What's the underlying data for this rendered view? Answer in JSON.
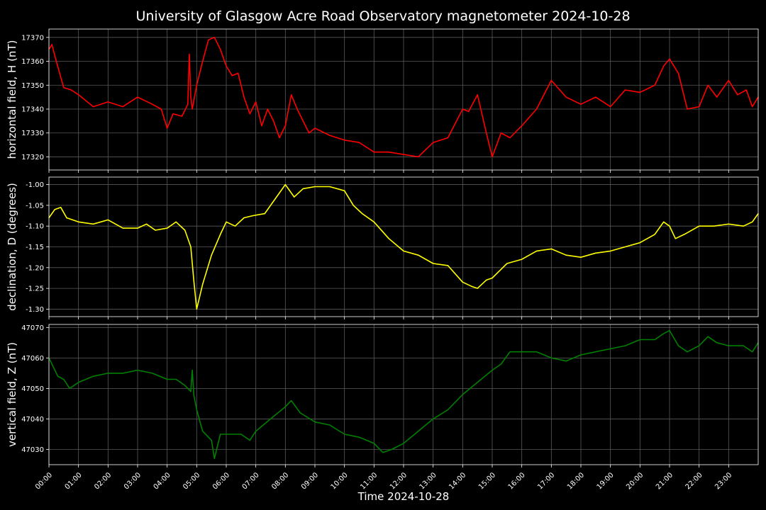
{
  "title": "University of Glasgow Acre Road Observatory magnetometer 2024-10-28",
  "xlabel": "Time 2024-10-28",
  "x_tick_labels": [
    "00:00",
    "01:00",
    "02:00",
    "03:00",
    "04:00",
    "05:00",
    "06:00",
    "07:00",
    "08:00",
    "09:00",
    "10:00",
    "11:00",
    "12:00",
    "13:00",
    "14:00",
    "15:00",
    "16:00",
    "17:00",
    "18:00",
    "19:00",
    "20:00",
    "21:00",
    "22:00",
    "23:00"
  ],
  "chart_data": [
    {
      "type": "line",
      "ylabel": "horizontal field, H (nT)",
      "color": "#ff0000",
      "x_unit": "hours",
      "xlim": [
        0,
        24
      ],
      "ylim": [
        17314.5,
        17373.5
      ],
      "yticks": [
        17320,
        17330,
        17340,
        17350,
        17360,
        17370
      ],
      "ytick_labels": [
        "17320",
        "17330",
        "17340",
        "17350",
        "17360",
        "17370"
      ],
      "grid": true,
      "x": [
        0,
        0.1,
        0.25,
        0.5,
        0.75,
        1,
        1.5,
        2,
        2.5,
        3,
        3.5,
        3.8,
        4,
        4.2,
        4.5,
        4.7,
        4.75,
        4.8,
        4.85,
        5,
        5.2,
        5.4,
        5.6,
        5.8,
        6,
        6.2,
        6.4,
        6.6,
        6.8,
        7,
        7.2,
        7.4,
        7.6,
        7.8,
        8,
        8.2,
        8.4,
        8.6,
        8.8,
        9,
        9.5,
        10,
        10.5,
        11,
        11.5,
        12,
        12.5,
        13,
        13.5,
        14,
        14.2,
        14.5,
        14.8,
        15,
        15.3,
        15.6,
        16,
        16.5,
        17,
        17.5,
        18,
        18.5,
        19,
        19.5,
        20,
        20.5,
        20.8,
        21,
        21.3,
        21.6,
        22,
        22.3,
        22.6,
        23,
        23.3,
        23.6,
        23.8,
        24
      ],
      "y": [
        17365,
        17367,
        17360,
        17349,
        17348,
        17346,
        17341,
        17343,
        17341,
        17345,
        17342,
        17340,
        17332,
        17338,
        17337,
        17342,
        17363,
        17345,
        17340,
        17350,
        17360,
        17369,
        17370,
        17365,
        17358,
        17354,
        17355,
        17345,
        17338,
        17343,
        17333,
        17340,
        17335,
        17328,
        17333,
        17346,
        17340,
        17335,
        17330,
        17332,
        17329,
        17327,
        17326,
        17322,
        17322,
        17321,
        17320,
        17326,
        17328,
        17340,
        17339,
        17346,
        17330,
        17320,
        17330,
        17328,
        17333,
        17340,
        17352,
        17345,
        17342,
        17345,
        17341,
        17348,
        17347,
        17350,
        17358,
        17361,
        17355,
        17340,
        17341,
        17350,
        17345,
        17352,
        17346,
        17348,
        17341,
        17345
      ]
    },
    {
      "type": "line",
      "ylabel": "declination, D (degrees)",
      "color": "#ffff00",
      "x_unit": "hours",
      "xlim": [
        0,
        24
      ],
      "ylim": [
        -1.318,
        -0.982
      ],
      "yticks": [
        -1.3,
        -1.25,
        -1.2,
        -1.15,
        -1.1,
        -1.05,
        -1.0
      ],
      "ytick_labels": [
        "-1.30",
        "-1.25",
        "-1.20",
        "-1.15",
        "-1.10",
        "-1.05",
        "-1.00"
      ],
      "grid": true,
      "x": [
        0,
        0.2,
        0.4,
        0.6,
        1,
        1.5,
        2,
        2.5,
        3,
        3.3,
        3.6,
        4,
        4.3,
        4.6,
        4.8,
        4.9,
        5,
        5.2,
        5.5,
        5.8,
        6,
        6.3,
        6.6,
        6.9,
        7.3,
        7.6,
        8,
        8.3,
        8.6,
        9,
        9.5,
        10,
        10.3,
        10.6,
        11,
        11.5,
        12,
        12.5,
        13,
        13.5,
        14,
        14.3,
        14.5,
        14.8,
        15,
        15.5,
        16,
        16.5,
        17,
        17.5,
        18,
        18.5,
        19,
        19.5,
        20,
        20.5,
        20.8,
        21,
        21.2,
        21.5,
        22,
        22.5,
        23,
        23.5,
        23.8,
        24
      ],
      "y": [
        -1.08,
        -1.06,
        -1.055,
        -1.08,
        -1.09,
        -1.095,
        -1.085,
        -1.105,
        -1.105,
        -1.095,
        -1.11,
        -1.105,
        -1.09,
        -1.11,
        -1.15,
        -1.23,
        -1.3,
        -1.24,
        -1.17,
        -1.12,
        -1.09,
        -1.1,
        -1.08,
        -1.075,
        -1.07,
        -1.04,
        -1.0,
        -1.03,
        -1.01,
        -1.005,
        -1.005,
        -1.015,
        -1.05,
        -1.07,
        -1.09,
        -1.13,
        -1.16,
        -1.17,
        -1.19,
        -1.195,
        -1.235,
        -1.245,
        -1.25,
        -1.23,
        -1.225,
        -1.19,
        -1.18,
        -1.16,
        -1.155,
        -1.17,
        -1.175,
        -1.165,
        -1.16,
        -1.15,
        -1.14,
        -1.12,
        -1.09,
        -1.1,
        -1.13,
        -1.12,
        -1.1,
        -1.1,
        -1.095,
        -1.1,
        -1.09,
        -1.07
      ]
    },
    {
      "type": "line",
      "ylabel": "vertical field, Z (nT)",
      "color": "#008000",
      "x_unit": "hours",
      "xlim": [
        0,
        24
      ],
      "ylim": [
        47025.0,
        47071.0
      ],
      "yticks": [
        47030,
        47040,
        47050,
        47060,
        47070
      ],
      "ytick_labels": [
        "47030",
        "47040",
        "47050",
        "47060",
        "47070"
      ],
      "grid": true,
      "x": [
        0,
        0.15,
        0.3,
        0.5,
        0.7,
        1,
        1.5,
        2,
        2.5,
        3,
        3.5,
        4,
        4.3,
        4.6,
        4.8,
        4.85,
        4.9,
        5,
        5.2,
        5.5,
        5.6,
        5.8,
        6,
        6.5,
        6.8,
        7,
        7.5,
        8,
        8.2,
        8.5,
        9,
        9.5,
        10,
        10.5,
        11,
        11.3,
        11.6,
        12,
        12.5,
        13,
        13.5,
        14,
        14.5,
        15,
        15.3,
        15.6,
        16,
        16.5,
        17,
        17.5,
        18,
        18.5,
        19,
        19.5,
        20,
        20.5,
        20.8,
        21,
        21.3,
        21.6,
        22,
        22.3,
        22.6,
        23,
        23.5,
        23.8,
        24
      ],
      "y": [
        47060,
        47057,
        47054,
        47053,
        47050,
        47052,
        47054,
        47055,
        47055,
        47056,
        47055,
        47053,
        47053,
        47051,
        47049,
        47056,
        47048,
        47043,
        47036,
        47033,
        47027,
        47035,
        47035,
        47035,
        47033,
        47036,
        47040,
        47044,
        47046,
        47042,
        47039,
        47038,
        47035,
        47034,
        47032,
        47029,
        47030,
        47032,
        47036,
        47040,
        47043,
        47048,
        47052,
        47056,
        47058,
        47062,
        47062,
        47062,
        47060,
        47059,
        47061,
        47062,
        47063,
        47064,
        47066,
        47066,
        47068,
        47069,
        47064,
        47062,
        47064,
        47067,
        47065,
        47064,
        47064,
        47062,
        47065
      ]
    }
  ]
}
